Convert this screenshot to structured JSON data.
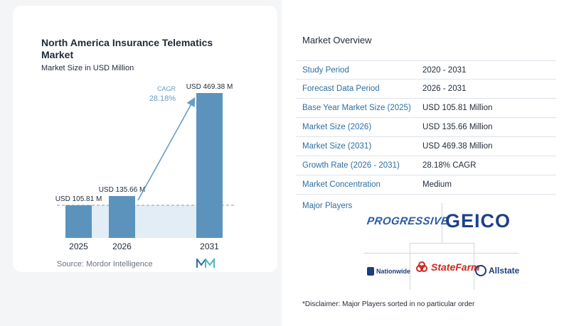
{
  "chart_data": {
    "type": "bar",
    "title": "North America Insurance Telematics Market",
    "subtitle": "Market Size in USD Million",
    "categories": [
      "2025",
      "2026",
      "2031"
    ],
    "values": [
      105.81,
      135.66,
      469.38
    ],
    "value_labels": [
      "USD 105.81 M",
      "USD 135.66 M",
      "USD 469.38 M"
    ],
    "colors": [
      "#5b93bd",
      "#5b93bd",
      "#5b93bd"
    ],
    "cagr_label": "CAGR",
    "cagr_value": "28.18%",
    "source": "Source: Mordor Intelligence",
    "grid": false,
    "ylim": [
      0,
      469.38
    ]
  },
  "overview": {
    "title": "Market Overview",
    "rows": [
      {
        "label": "Study Period",
        "value": "2020 - 2031"
      },
      {
        "label": "Forecast Data Period",
        "value": "2026 - 2031"
      },
      {
        "label": "Base Year Market Size (2025)",
        "value": "USD 105.81 Million"
      },
      {
        "label": "Market Size (2026)",
        "value": "USD 135.66 Million"
      },
      {
        "label": "Market Size (2031)",
        "value": "USD 469.38 Million"
      },
      {
        "label": "Growth Rate (2026 - 2031)",
        "value": "28.18% CAGR"
      },
      {
        "label": "Market Concentration",
        "value": "Medium"
      }
    ]
  },
  "players": {
    "title": "Major Players",
    "logos": [
      "PROGRESSIVE",
      "GEICO",
      "Nationwide",
      "StateFarm",
      "Allstate"
    ]
  },
  "disclaimer": "*Disclaimer: Major Players sorted in no particular order",
  "colors": {
    "accent": "#2e6fa3",
    "bar": "#5b93bd",
    "arrow": "#6a9cc4",
    "band": "#e3edf5"
  }
}
